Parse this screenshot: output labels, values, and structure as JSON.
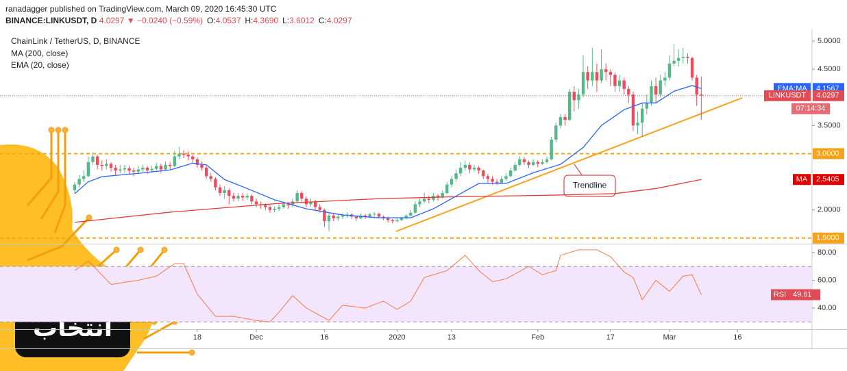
{
  "header": {
    "published": "ranadagger published on TradingView.com, March 09, 2020 16:45:30 UTC",
    "symbol": "BINANCE:LINKUSDT, D",
    "change": "4.0297 ▼ −0.0240 (−0.59%)",
    "ohlc": [
      [
        "O:",
        "4.0537"
      ],
      [
        "H:",
        "4.3690"
      ],
      [
        "L:",
        "3.6012"
      ],
      [
        "C:",
        "4.0297"
      ]
    ]
  },
  "watermark": "انتخاب",
  "chart_data": [
    {
      "type": "candlestick",
      "title": "ChainLink / TetherUS, D, BINANCE",
      "up_color": "#53b987",
      "down_color": "#eb4d5c",
      "ohlc": [
        [
          2.35,
          2.5,
          2.3,
          2.45
        ],
        [
          2.45,
          2.62,
          2.4,
          2.55
        ],
        [
          2.55,
          2.7,
          2.5,
          2.6
        ],
        [
          2.6,
          2.95,
          2.58,
          2.85
        ],
        [
          2.85,
          3.02,
          2.8,
          2.95
        ],
        [
          2.95,
          2.98,
          2.72,
          2.8
        ],
        [
          2.8,
          2.88,
          2.7,
          2.78
        ],
        [
          2.78,
          2.9,
          2.72,
          2.82
        ],
        [
          2.82,
          2.85,
          2.68,
          2.75
        ],
        [
          2.75,
          2.8,
          2.62,
          2.7
        ],
        [
          2.7,
          2.8,
          2.65,
          2.72
        ],
        [
          2.72,
          2.8,
          2.66,
          2.74
        ],
        [
          2.74,
          2.78,
          2.64,
          2.7
        ],
        [
          2.7,
          2.75,
          2.6,
          2.68
        ],
        [
          2.68,
          2.78,
          2.64,
          2.72
        ],
        [
          2.72,
          2.8,
          2.68,
          2.75
        ],
        [
          2.75,
          2.78,
          2.64,
          2.7
        ],
        [
          2.7,
          2.78,
          2.66,
          2.73
        ],
        [
          2.73,
          2.84,
          2.7,
          2.78
        ],
        [
          2.78,
          2.82,
          2.66,
          2.72
        ],
        [
          2.72,
          2.86,
          2.7,
          2.8
        ],
        [
          2.8,
          2.85,
          2.72,
          2.78
        ],
        [
          2.78,
          3.05,
          2.76,
          2.95
        ],
        [
          2.95,
          3.12,
          2.9,
          3.0
        ],
        [
          3.0,
          3.06,
          2.92,
          2.98
        ],
        [
          2.98,
          3.04,
          2.88,
          2.95
        ],
        [
          2.95,
          2.98,
          2.84,
          2.9
        ],
        [
          2.9,
          2.94,
          2.75,
          2.8
        ],
        [
          2.8,
          2.86,
          2.7,
          2.75
        ],
        [
          2.75,
          2.78,
          2.55,
          2.6
        ],
        [
          2.6,
          2.66,
          2.5,
          2.55
        ],
        [
          2.55,
          2.58,
          2.35,
          2.4
        ],
        [
          2.4,
          2.45,
          2.25,
          2.3
        ],
        [
          2.3,
          2.42,
          2.2,
          2.35
        ],
        [
          2.35,
          2.38,
          2.1,
          2.25
        ],
        [
          2.25,
          2.3,
          2.15,
          2.2
        ],
        [
          2.2,
          2.3,
          2.15,
          2.25
        ],
        [
          2.25,
          2.3,
          2.16,
          2.22
        ],
        [
          2.22,
          2.3,
          2.18,
          2.25
        ],
        [
          2.25,
          2.28,
          2.1,
          2.15
        ],
        [
          2.15,
          2.2,
          2.05,
          2.1
        ],
        [
          2.1,
          2.15,
          2.02,
          2.08
        ],
        [
          2.08,
          2.12,
          2.0,
          2.05
        ],
        [
          2.05,
          2.08,
          1.95,
          2.0
        ],
        [
          2.0,
          2.06,
          1.96,
          2.02
        ],
        [
          2.02,
          2.1,
          1.98,
          2.05
        ],
        [
          2.05,
          2.14,
          2.02,
          2.1
        ],
        [
          2.1,
          2.14,
          2.02,
          2.08
        ],
        [
          2.08,
          2.2,
          2.05,
          2.15
        ],
        [
          2.15,
          2.35,
          2.12,
          2.3
        ],
        [
          2.3,
          2.33,
          2.15,
          2.2
        ],
        [
          2.2,
          2.24,
          2.05,
          2.1
        ],
        [
          2.1,
          2.2,
          2.06,
          2.15
        ],
        [
          2.15,
          2.18,
          2.0,
          2.05
        ],
        [
          2.05,
          2.1,
          1.95,
          2.0
        ],
        [
          2.0,
          2.02,
          1.7,
          1.8
        ],
        [
          1.8,
          1.95,
          1.62,
          1.9
        ],
        [
          1.9,
          1.94,
          1.8,
          1.85
        ],
        [
          1.85,
          1.92,
          1.8,
          1.88
        ],
        [
          1.88,
          1.94,
          1.84,
          1.9
        ],
        [
          1.9,
          1.96,
          1.86,
          1.92
        ],
        [
          1.92,
          1.94,
          1.84,
          1.88
        ],
        [
          1.88,
          1.9,
          1.8,
          1.85
        ],
        [
          1.85,
          1.94,
          1.83,
          1.9
        ],
        [
          1.9,
          1.93,
          1.84,
          1.88
        ],
        [
          1.88,
          1.95,
          1.86,
          1.92
        ],
        [
          1.92,
          1.96,
          1.88,
          1.93
        ],
        [
          1.93,
          1.95,
          1.85,
          1.88
        ],
        [
          1.88,
          1.9,
          1.82,
          1.85
        ],
        [
          1.85,
          1.88,
          1.78,
          1.82
        ],
        [
          1.82,
          1.84,
          1.76,
          1.8
        ],
        [
          1.8,
          1.85,
          1.78,
          1.82
        ],
        [
          1.82,
          1.88,
          1.8,
          1.85
        ],
        [
          1.85,
          1.92,
          1.83,
          1.9
        ],
        [
          1.9,
          2.0,
          1.88,
          1.95
        ],
        [
          1.95,
          2.15,
          1.93,
          2.1
        ],
        [
          2.1,
          2.2,
          2.05,
          2.15
        ],
        [
          2.15,
          2.3,
          2.12,
          2.2
        ],
        [
          2.2,
          2.25,
          2.12,
          2.18
        ],
        [
          2.18,
          2.3,
          2.15,
          2.25
        ],
        [
          2.25,
          2.28,
          2.16,
          2.22
        ],
        [
          2.22,
          2.35,
          2.2,
          2.3
        ],
        [
          2.3,
          2.5,
          2.28,
          2.45
        ],
        [
          2.45,
          2.6,
          2.4,
          2.55
        ],
        [
          2.55,
          2.72,
          2.5,
          2.65
        ],
        [
          2.65,
          2.85,
          2.6,
          2.75
        ],
        [
          2.75,
          2.88,
          2.7,
          2.8
        ],
        [
          2.8,
          2.84,
          2.65,
          2.72
        ],
        [
          2.72,
          2.8,
          2.68,
          2.75
        ],
        [
          2.75,
          2.78,
          2.64,
          2.7
        ],
        [
          2.7,
          2.72,
          2.55,
          2.6
        ],
        [
          2.6,
          2.64,
          2.48,
          2.55
        ],
        [
          2.55,
          2.6,
          2.45,
          2.5
        ],
        [
          2.5,
          2.55,
          2.44,
          2.48
        ],
        [
          2.48,
          2.6,
          2.46,
          2.55
        ],
        [
          2.55,
          2.65,
          2.52,
          2.6
        ],
        [
          2.6,
          2.75,
          2.58,
          2.7
        ],
        [
          2.7,
          2.85,
          2.68,
          2.8
        ],
        [
          2.8,
          2.95,
          2.78,
          2.9
        ],
        [
          2.9,
          2.94,
          2.8,
          2.85
        ],
        [
          2.85,
          2.88,
          2.75,
          2.8
        ],
        [
          2.8,
          2.9,
          2.78,
          2.85
        ],
        [
          2.85,
          2.88,
          2.76,
          2.82
        ],
        [
          2.82,
          2.9,
          2.8,
          2.85
        ],
        [
          2.85,
          2.95,
          2.82,
          2.9
        ],
        [
          2.9,
          3.3,
          2.88,
          3.25
        ],
        [
          3.25,
          3.55,
          3.2,
          3.5
        ],
        [
          3.5,
          3.7,
          3.45,
          3.65
        ],
        [
          3.65,
          3.7,
          3.5,
          3.6
        ],
        [
          3.6,
          4.15,
          3.58,
          4.1
        ],
        [
          4.1,
          4.2,
          3.75,
          3.95
        ],
        [
          3.95,
          4.15,
          3.8,
          4.05
        ],
        [
          4.05,
          4.75,
          4.0,
          4.45
        ],
        [
          4.45,
          4.55,
          4.15,
          4.3
        ],
        [
          4.3,
          4.88,
          4.2,
          4.45
        ],
        [
          4.45,
          4.6,
          4.1,
          4.3
        ],
        [
          4.3,
          4.85,
          4.25,
          4.5
        ],
        [
          4.5,
          4.6,
          4.3,
          4.45
        ],
        [
          4.45,
          4.5,
          4.2,
          4.4
        ],
        [
          4.4,
          4.45,
          4.1,
          4.2
        ],
        [
          4.2,
          4.4,
          4.1,
          4.3
        ],
        [
          4.3,
          4.35,
          4.05,
          4.15
        ],
        [
          4.15,
          4.2,
          3.9,
          4.05
        ],
        [
          4.05,
          4.1,
          3.4,
          3.5
        ],
        [
          3.5,
          3.75,
          3.35,
          3.55
        ],
        [
          3.55,
          3.9,
          3.3,
          3.8
        ],
        [
          3.8,
          4.05,
          3.7,
          3.9
        ],
        [
          3.9,
          4.3,
          3.85,
          4.2
        ],
        [
          4.2,
          4.35,
          3.9,
          4.05
        ],
        [
          4.05,
          4.4,
          4.0,
          4.3
        ],
        [
          4.3,
          4.45,
          4.2,
          4.35
        ],
        [
          4.35,
          4.75,
          4.3,
          4.6
        ],
        [
          4.6,
          4.95,
          4.55,
          4.65
        ],
        [
          4.65,
          4.85,
          4.55,
          4.7
        ],
        [
          4.7,
          4.88,
          4.6,
          4.72
        ],
        [
          4.72,
          4.78,
          4.6,
          4.7
        ],
        [
          4.7,
          4.72,
          4.3,
          4.35
        ],
        [
          4.35,
          4.4,
          3.85,
          4.05
        ],
        [
          4.05,
          4.37,
          3.6,
          4.03
        ]
      ],
      "series": [
        {
          "name": "MA (200, close)",
          "color": "#e53935",
          "x": [
            0,
            21,
            44,
            67,
            82,
            104,
            119,
            128,
            138
          ],
          "values": [
            1.78,
            1.96,
            2.11,
            2.2,
            2.23,
            2.26,
            2.29,
            2.38,
            2.5405
          ]
        },
        {
          "name": "EMA (20, close)",
          "color": "#2962ff",
          "x": [
            0,
            3,
            6,
            14,
            21,
            26,
            29,
            33,
            38,
            44,
            51,
            59,
            67,
            74,
            79,
            85,
            89,
            95,
            101,
            107,
            112,
            116,
            121,
            125,
            128,
            132,
            136,
            138
          ],
          "values": [
            2.29,
            2.5,
            2.59,
            2.65,
            2.71,
            2.83,
            2.8,
            2.54,
            2.38,
            2.18,
            2.02,
            1.91,
            1.86,
            1.86,
            2.02,
            2.29,
            2.47,
            2.47,
            2.66,
            2.81,
            3.11,
            3.5,
            3.78,
            3.9,
            3.9,
            4.11,
            4.21,
            4.1567
          ]
        }
      ],
      "xlim": [
        -16.45,
        162.4
      ],
      "xticks": [
        {
          "value": 27,
          "label": "18"
        },
        {
          "value": 40,
          "label": "Dec"
        },
        {
          "value": 55,
          "label": "16"
        },
        {
          "value": 71,
          "label": "2020"
        },
        {
          "value": 83,
          "label": "13"
        },
        {
          "value": 102,
          "label": "Feb"
        },
        {
          "value": 118,
          "label": "17"
        },
        {
          "value": 131,
          "label": "Mar"
        },
        {
          "value": 146,
          "label": "16"
        }
      ],
      "ylim": [
        1.4,
        5.207
      ],
      "yticks": [
        {
          "value": 5,
          "label": "5.0000"
        },
        {
          "value": 4.5,
          "label": "4.5000"
        },
        {
          "value": 3.5,
          "label": "3.5000"
        },
        {
          "value": 2,
          "label": "2.0000"
        }
      ],
      "levels": [
        {
          "value": 3,
          "label": "3.0000"
        },
        {
          "value": 1.5,
          "label": "1.5000"
        }
      ],
      "level_color": "#f7a21b",
      "last_price": 4.0297,
      "badges": [
        {
          "name": "EMA:MA",
          "value": 4.1567,
          "color": "#2962ff"
        },
        {
          "name": "LINKUSDT",
          "value": 4.0297,
          "color": "#e04c56"
        },
        {
          "name": "MA",
          "value": 2.5405,
          "color": "#e00000"
        }
      ],
      "countdown": "07:14:34",
      "annotation": "Trendline"
    },
    {
      "type": "line",
      "name": "RSI",
      "color": "#f47c4c",
      "x": [
        0,
        3,
        8,
        14,
        18,
        22,
        24,
        27,
        31,
        35,
        40,
        43,
        45,
        48,
        51,
        56,
        59,
        64,
        68,
        71,
        74,
        77,
        82,
        86,
        89,
        92,
        95,
        100,
        103,
        106,
        107,
        111,
        115,
        118,
        121,
        123,
        125,
        128,
        131,
        134,
        136,
        138
      ],
      "values": [
        67,
        74,
        57,
        60,
        63,
        72,
        72,
        50,
        34,
        34,
        31,
        30,
        37,
        49,
        40,
        31,
        42,
        40,
        45,
        39,
        45,
        62,
        67,
        78,
        67,
        59,
        61,
        70,
        64,
        67,
        78,
        82,
        82,
        77,
        66,
        62,
        46,
        60,
        52,
        63,
        64,
        49.61
      ],
      "ylim": [
        24.7,
        85.9
      ],
      "yticks": [
        {
          "value": 80,
          "label": "80.00"
        },
        {
          "value": 60,
          "label": "60.00"
        },
        {
          "value": 40,
          "label": "40.00"
        }
      ],
      "levels": [
        70,
        30
      ],
      "badge_color": "#e04c56"
    }
  ]
}
